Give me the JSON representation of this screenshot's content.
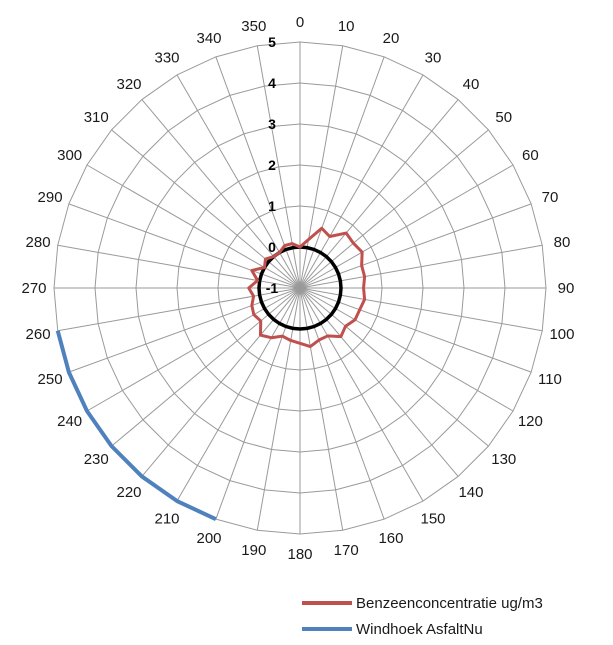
{
  "chart_data": {
    "type": "radar",
    "angle_labels": [
      "0",
      "10",
      "20",
      "30",
      "40",
      "50",
      "60",
      "70",
      "80",
      "90",
      "100",
      "110",
      "120",
      "130",
      "140",
      "150",
      "160",
      "170",
      "180",
      "190",
      "200",
      "210",
      "220",
      "230",
      "240",
      "250",
      "260",
      "270",
      "280",
      "290",
      "300",
      "310",
      "320",
      "330",
      "340",
      "350"
    ],
    "radial_tick_labels": [
      "-1",
      "0",
      "1",
      "2",
      "3",
      "4",
      "5"
    ],
    "rlim": [
      -1,
      5
    ],
    "grid": true,
    "legend_position": "bottom-right",
    "series": [
      {
        "name": "Benzeenconcentratie ug/m3",
        "color": "#c0504d",
        "values": [
          0.0,
          0.2,
          0.55,
          0.45,
          0.75,
          0.7,
          0.75,
          0.6,
          0.6,
          0.55,
          0.6,
          0.55,
          0.55,
          0.45,
          0.55,
          0.35,
          0.35,
          0.45,
          0.35,
          0.3,
          0.25,
          0.4,
          0.5,
          0.25,
          0.3,
          0.25,
          0.15,
          0.25,
          0.05,
          0.25,
          0.0,
          0.1,
          0.0,
          0.0,
          0.1,
          0.1
        ]
      },
      {
        "name": "Windhoek AsfaltNu",
        "color": "#4f81bd",
        "values": [
          -1,
          -1,
          -1,
          -1,
          -1,
          -1,
          -1,
          -1,
          -1,
          -1,
          -1,
          -1,
          -1,
          -1,
          -1,
          -1,
          -1,
          -1,
          -1,
          -1,
          5,
          5,
          5,
          5,
          5,
          5,
          5,
          -1,
          -1,
          -1,
          -1,
          -1,
          -1,
          -1,
          -1,
          -1
        ]
      }
    ],
    "reference_series": {
      "name": "",
      "value": 0,
      "color": "#000000"
    }
  },
  "legend": {
    "items": [
      {
        "label": "Benzeenconcentratie ug/m3",
        "color": "#c0504d"
      },
      {
        "label": "Windhoek AsfaltNu",
        "color": "#4f81bd"
      }
    ]
  }
}
